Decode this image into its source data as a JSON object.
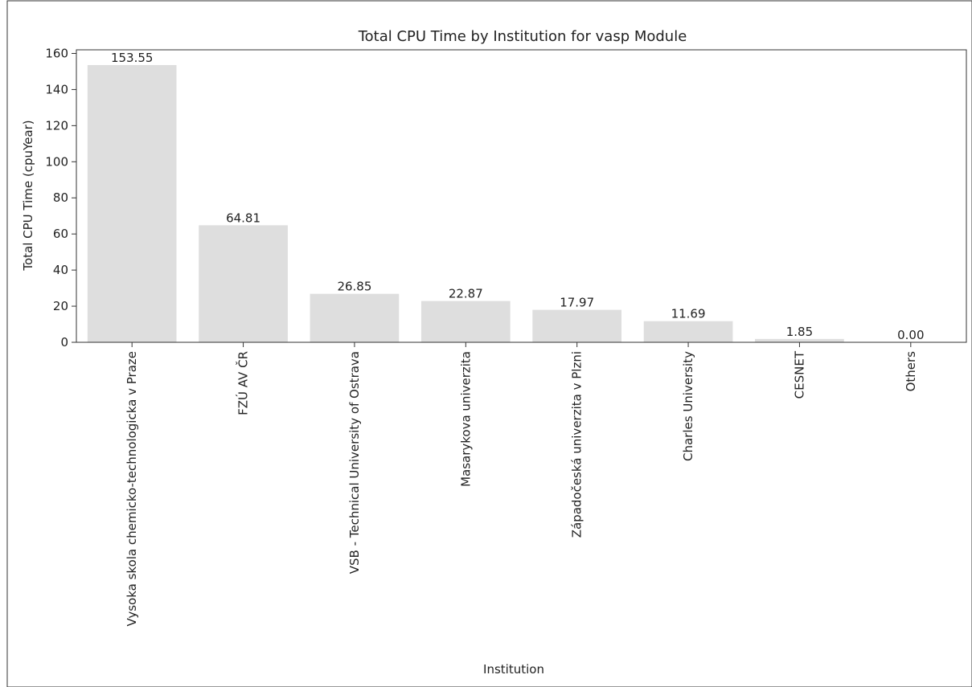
{
  "chart_data": {
    "type": "bar",
    "title": "Total CPU Time by Institution for vasp Module",
    "xlabel": "Institution",
    "ylabel": "Total CPU Time (cpuYear)",
    "ylim": [
      0,
      162
    ],
    "yticks": [
      0,
      20,
      40,
      60,
      80,
      100,
      120,
      140,
      160
    ],
    "categories": [
      "Vysoka skola chemicko-technologicka v Praze",
      "FZÚ AV ČR",
      "VSB - Technical University of Ostrava",
      "Masarykova univerzita",
      "Západočeská univerzita v Plzni",
      "Charles University",
      "CESNET",
      "Others"
    ],
    "values": [
      153.55,
      64.81,
      26.85,
      22.87,
      17.97,
      11.69,
      1.85,
      0.0
    ],
    "value_labels": [
      "153.55",
      "64.81",
      "26.85",
      "22.87",
      "17.97",
      "11.69",
      "1.85",
      "0.00"
    ],
    "bar_color": "#dedede",
    "grid": false,
    "legend": "none"
  }
}
